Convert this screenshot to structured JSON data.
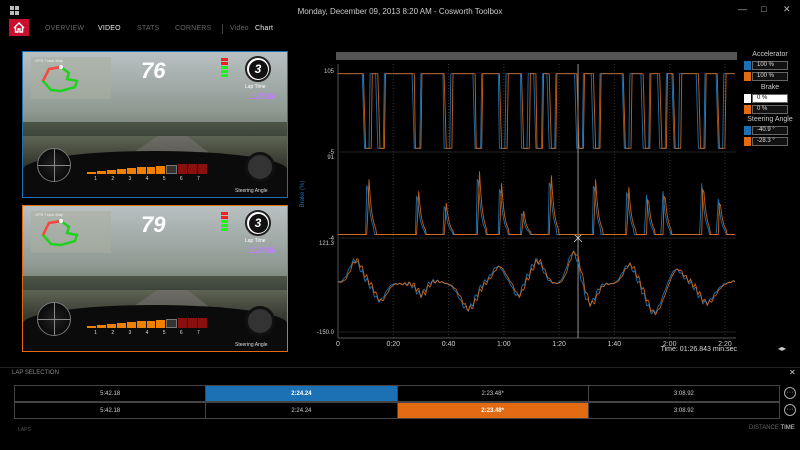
{
  "window": {
    "title": "Monday, December 09, 2013 8:20 AM - Cosworth Toolbox",
    "minimize": "—",
    "maximize": "□",
    "close": "✕"
  },
  "nav": {
    "home_icon": "home-icon",
    "tabs": [
      {
        "label": "OVERVIEW",
        "active": false
      },
      {
        "label": "VIDEO",
        "active": true
      },
      {
        "label": "STATS",
        "active": false
      },
      {
        "label": "CORNERS",
        "active": false
      }
    ],
    "subtabs": [
      {
        "label": "Video",
        "active": false
      },
      {
        "label": "Chart",
        "active": true
      }
    ]
  },
  "videos": [
    {
      "border_color": "#1c70b4",
      "speed": "76",
      "gear": "3",
      "lap_time_label": "Lap Time",
      "lap_time": "1:28.80",
      "map_label": "GPS Track Map",
      "rpm_labels": [
        "1",
        "2",
        "3",
        "4",
        "5",
        "6",
        "7"
      ],
      "steering_label": "Steering Angle"
    },
    {
      "border_color": "#e26a12",
      "speed": "79",
      "gear": "3",
      "lap_time_label": "Lap Time",
      "lap_time": "1:28.80",
      "map_label": "GPS Track Map",
      "rpm_labels": [
        "1",
        "2",
        "3",
        "4",
        "5",
        "6",
        "7"
      ],
      "steering_label": "Steering Angle"
    }
  ],
  "chart_data": {
    "type": "line",
    "x_unit": "min:sec",
    "x_ticks": [
      "0",
      "0:20",
      "0:40",
      "1:00",
      "1:20",
      "1:40",
      "2:00",
      "2:20"
    ],
    "x_range_seconds": [
      0,
      144
    ],
    "cursor_readout": "Time: 01:26.843 min:sec",
    "colors": {
      "lap_a": "#1c70b4",
      "lap_b": "#e26a12"
    },
    "panels": [
      {
        "name": "Accelerator",
        "ylabel": "",
        "ytick_top": "105",
        "ytick_bottom": "-5",
        "ylim": [
          -5,
          105
        ]
      },
      {
        "name": "Brake",
        "ylabel": "Brake (%)",
        "ytick_top": "91",
        "ytick_bottom": "-4",
        "ylim": [
          -4,
          91
        ]
      },
      {
        "name": "Steering Angle",
        "ylabel": "",
        "ytick_top": "121.3",
        "ytick_bottom": "-150.0",
        "ylim": [
          -150.0,
          121.3
        ]
      }
    ]
  },
  "legend": {
    "items": [
      {
        "title": "Accelerator",
        "values": [
          {
            "color": "#1c70b4",
            "text": "100 %"
          },
          {
            "color": "#e26a12",
            "text": "100 %"
          }
        ]
      },
      {
        "title": "Brake",
        "values": [
          {
            "color": "#ffffff",
            "text": "0 %"
          },
          {
            "color": "#e26a12",
            "text": "0 %"
          }
        ]
      },
      {
        "title": "Steering Angle",
        "values": [
          {
            "color": "#1c70b4",
            "text": "-40.9 °"
          },
          {
            "color": "#e26a12",
            "text": "-28.3 °"
          }
        ]
      }
    ]
  },
  "lap_selection": {
    "title": "LAP SELECTION",
    "close": "✕",
    "rows": [
      {
        "cells": [
          "5:42.18",
          "2:24.24",
          "2:23.48*",
          "3:08.92"
        ],
        "selected": 1,
        "selected_color": "blue"
      },
      {
        "cells": [
          "5:42.18",
          "2:24.24",
          "2:23.48*",
          "3:08.92"
        ],
        "selected": 2,
        "selected_color": "orange"
      }
    ],
    "more": "···"
  },
  "footer": {
    "laps_label": "LAPS",
    "distance": "DISTANCE",
    "time": "TIME"
  }
}
